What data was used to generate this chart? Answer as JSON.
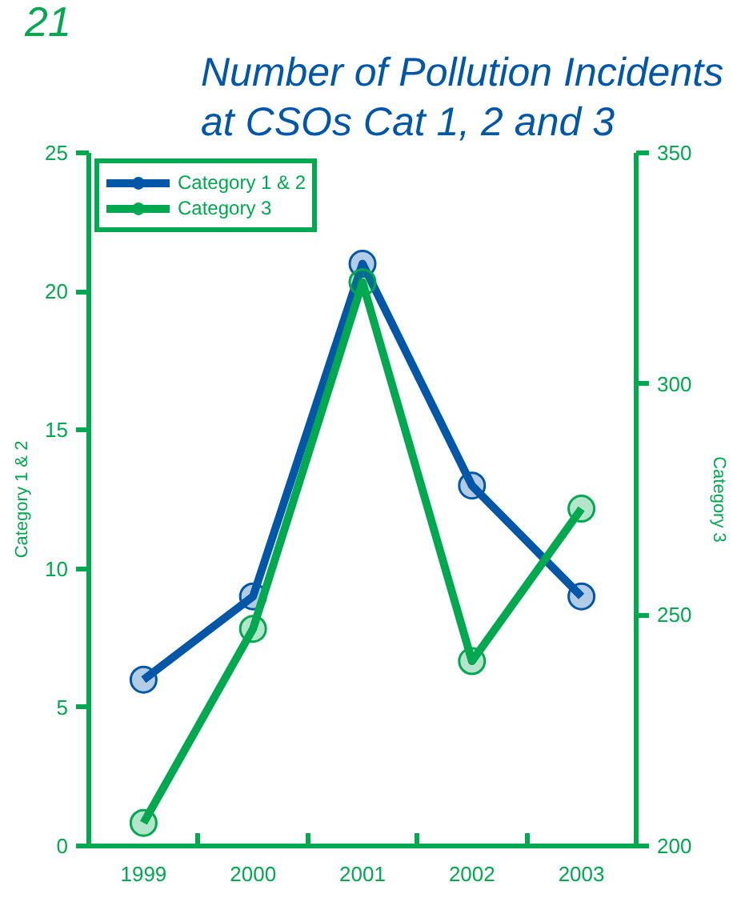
{
  "chart_data": {
    "type": "line",
    "title": "Number of Pollution Incidents at CSOs Cat 1, 2 and 3",
    "annotations": [
      "21"
    ],
    "categories": [
      "1999",
      "2000",
      "2001",
      "2002",
      "2003"
    ],
    "ylabel": "Category 1 & 2",
    "y2label": "Category 3",
    "ylim": [
      0,
      25
    ],
    "yticks": [
      0,
      5,
      10,
      15,
      20,
      25
    ],
    "y2lim": [
      200,
      350
    ],
    "y2ticks": [
      200,
      250,
      300,
      350
    ],
    "series": [
      {
        "name": "Category 1 & 2",
        "color": "#0057a8",
        "values": [
          6,
          9,
          21,
          13,
          9
        ]
      },
      {
        "name": "Category 3",
        "color": "#00a84f",
        "axis": "y2",
        "values": [
          205,
          247,
          322,
          240,
          273
        ]
      }
    ],
    "marker": "circle",
    "line_style": "solid",
    "grid": false,
    "legend": "top left"
  }
}
